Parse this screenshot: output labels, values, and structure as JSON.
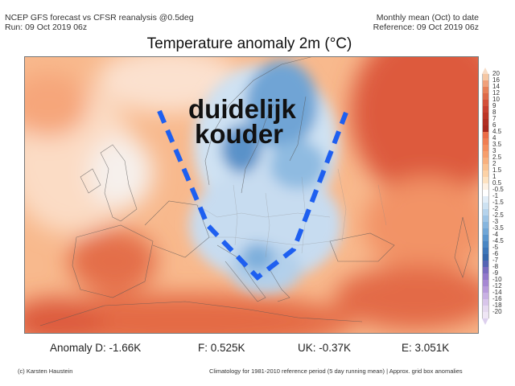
{
  "header": {
    "left_line1": "NCEP GFS forecast vs CFSR reanalysis @0.5deg",
    "left_line2": "Run: 09 Oct 2019 06z",
    "right_line1": "Monthly mean (Oct) to date",
    "right_line2": "Reference: 09 Oct 2019 06z"
  },
  "title": "Temperature anomaly 2m (°C)",
  "annotation": {
    "line1": "duidelijk",
    "line2": "kouder",
    "line_color": "#1e5ff0"
  },
  "colorbar": {
    "labels": [
      "20",
      "16",
      "14",
      "12",
      "10",
      "9",
      "8",
      "7",
      "6",
      "4.5",
      "4",
      "3.5",
      "3",
      "2.5",
      "2",
      "1.5",
      "1",
      "0.5",
      "-0.5",
      "-1",
      "-1.5",
      "-2",
      "-2.5",
      "-3",
      "-3.5",
      "-4",
      "-4.5",
      "-5",
      "-6",
      "-7",
      "-8",
      "-9",
      "-10",
      "-12",
      "-14",
      "-16",
      "-18",
      "-20"
    ],
    "colors": [
      "#f6c7a3",
      "#f0a07a",
      "#e78058",
      "#dd6a48",
      "#d3503a",
      "#c73f2f",
      "#bb3526",
      "#b02d21",
      "#a8281d",
      "#eb6c46",
      "#f07e52",
      "#f48e5e",
      "#f69e6c",
      "#f8b07e",
      "#fac291",
      "#fcd2a6",
      "#fde2c0",
      "#fdf1e3",
      "#ffffff",
      "#e2eef8",
      "#cde2f2",
      "#b5d3ec",
      "#9dc4e5",
      "#86b5de",
      "#70a6d6",
      "#5b96cd",
      "#4a86c3",
      "#3d76b8",
      "#3668ab",
      "#5564b4",
      "#7a6cc0",
      "#9278cb",
      "#a688d3",
      "#b89bdb",
      "#c8b0e3",
      "#d8c5ea",
      "#e6d9f0",
      "#efe6f5"
    ],
    "top_color": "#f7dcc6",
    "bottom_color": "#ddd0ee"
  },
  "stats": {
    "d": "Anomaly D: -1.66K",
    "f": "F: 0.525K",
    "uk": "UK: -0.37K",
    "e": "E: 3.051K"
  },
  "footer": {
    "left": "(c) Karsten Haustein",
    "right": "Climatology for 1981-2010 reference period (5 day running mean) | Approx. grid box anomalies"
  },
  "colors": {
    "warm_strong": "#d6402d",
    "warm": "#ee7e55",
    "warm_light": "#f8b484",
    "neutral": "#fdf0e4",
    "cold_light": "#d6e7f5",
    "cold": "#8ab9e0",
    "cold_strong": "#4a86c3",
    "sea": "#e9e9ef"
  }
}
